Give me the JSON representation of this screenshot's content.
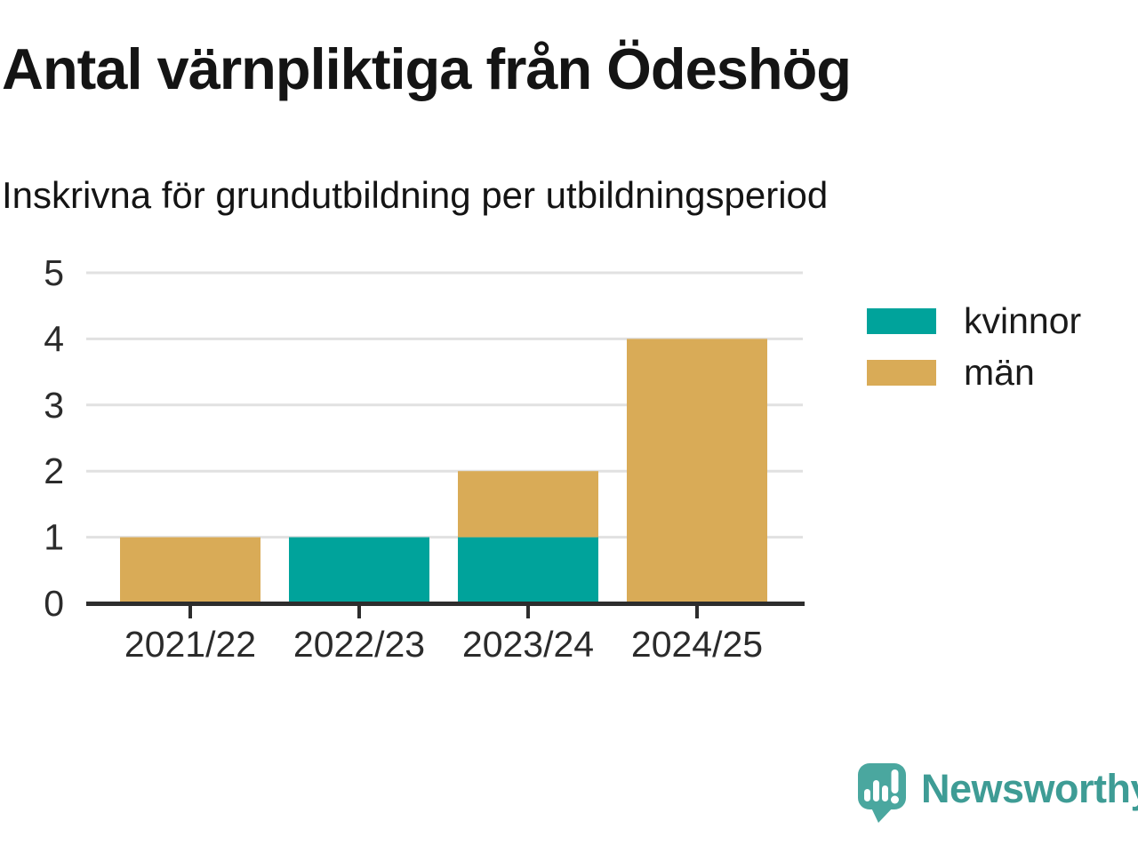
{
  "header": {
    "title": "Antal värnpliktiga från Ödeshög",
    "subtitle": "Inskrivna för grundutbildning per utbildningsperiod"
  },
  "chart_data": {
    "type": "bar",
    "stacked": true,
    "title": "Antal värnpliktiga från Ödeshög",
    "subtitle": "Inskrivna för grundutbildning per utbildningsperiod",
    "categories": [
      "2021/22",
      "2022/23",
      "2023/24",
      "2024/25"
    ],
    "series": [
      {
        "name": "kvinnor",
        "color": "#00A39B",
        "values": [
          0,
          1,
          1,
          0
        ]
      },
      {
        "name": "män",
        "color": "#D9AB57",
        "values": [
          1,
          0,
          1,
          4
        ]
      }
    ],
    "totals": [
      1,
      1,
      2,
      4
    ],
    "ylim": [
      0,
      5
    ],
    "yticks": [
      0,
      1,
      2,
      3,
      4,
      5
    ],
    "grid": true,
    "legend_position": "right",
    "xlabel": "",
    "ylabel": ""
  },
  "colors": {
    "kvinnor": "#00A39B",
    "man": "#D9AB57",
    "gridline": "#E1E1E1",
    "axis": "#2D2D2D",
    "tick_label": "#2B2B2B",
    "brand_teal": "#3E9C95",
    "logo_teal": "#4AA79F"
  },
  "footer": {
    "brand": "Newsworthy"
  }
}
